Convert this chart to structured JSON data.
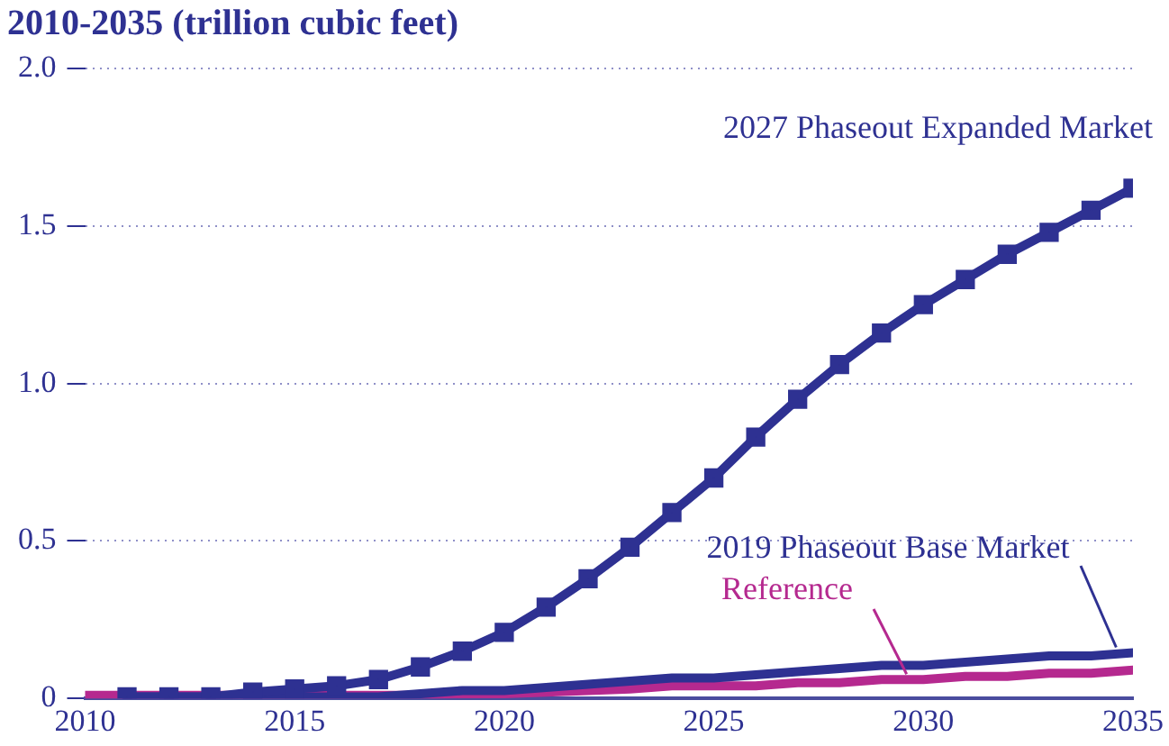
{
  "chart_data": {
    "type": "line",
    "title": "2010-2035 (trillion cubic feet)",
    "legend": false,
    "grid": "y",
    "line_style": "solid",
    "xlim": [
      2010,
      2035
    ],
    "xticks": [
      2010,
      2015,
      2020,
      2025,
      2030,
      2035
    ],
    "ylim": [
      0,
      2
    ],
    "yticks": [
      0,
      {
        "value": 0.5,
        "label": "0.5"
      },
      {
        "value": 1,
        "label": "1.0"
      },
      {
        "value": 1.5,
        "label": "1.5"
      },
      {
        "value": 2,
        "label": "2.0"
      }
    ],
    "series": [
      {
        "name": "2027 Phaseout Expanded Market",
        "color": "#2e3192",
        "marker": "square",
        "x": [
          2011,
          2012,
          2013,
          2014,
          2015,
          2016,
          2017,
          2018,
          2019,
          2020,
          2021,
          2022,
          2023,
          2024,
          2025,
          2026,
          2027,
          2028,
          2029,
          2030,
          2031,
          2032,
          2033,
          2034,
          2035
        ],
        "values": [
          0.005,
          0.005,
          0.005,
          0.02,
          0.03,
          0.04,
          0.06,
          0.1,
          0.15,
          0.21,
          0.29,
          0.38,
          0.48,
          0.59,
          0.7,
          0.83,
          0.95,
          1.06,
          1.16,
          1.25,
          1.33,
          1.41,
          1.48,
          1.55,
          1.62
        ]
      },
      {
        "name": "2019 Phaseout Base Market",
        "color": "#2e3192",
        "marker": "none",
        "x": [
          2011,
          2012,
          2013,
          2014,
          2015,
          2016,
          2017,
          2018,
          2019,
          2020,
          2021,
          2022,
          2023,
          2024,
          2025,
          2026,
          2027,
          2028,
          2029,
          2030,
          2031,
          2032,
          2033,
          2034,
          2035
        ],
        "values": [
          0.005,
          0.005,
          0.005,
          0.005,
          0.005,
          0.005,
          0.005,
          0.015,
          0.025,
          0.025,
          0.035,
          0.045,
          0.055,
          0.065,
          0.065,
          0.075,
          0.085,
          0.095,
          0.105,
          0.105,
          0.115,
          0.125,
          0.135,
          0.135,
          0.145
        ]
      },
      {
        "name": "Reference",
        "color": "#b5298f",
        "marker": "none",
        "x": [
          2010,
          2011,
          2012,
          2013,
          2014,
          2015,
          2016,
          2017,
          2018,
          2019,
          2020,
          2021,
          2022,
          2023,
          2024,
          2025,
          2026,
          2027,
          2028,
          2029,
          2030,
          2031,
          2032,
          2033,
          2034,
          2035
        ],
        "values": [
          0.01,
          0.01,
          0.01,
          0.01,
          0.01,
          0.01,
          0.01,
          0.01,
          0.01,
          0.015,
          0.015,
          0.02,
          0.025,
          0.03,
          0.04,
          0.04,
          0.04,
          0.05,
          0.05,
          0.06,
          0.06,
          0.07,
          0.07,
          0.08,
          0.08,
          0.09
        ]
      }
    ]
  }
}
